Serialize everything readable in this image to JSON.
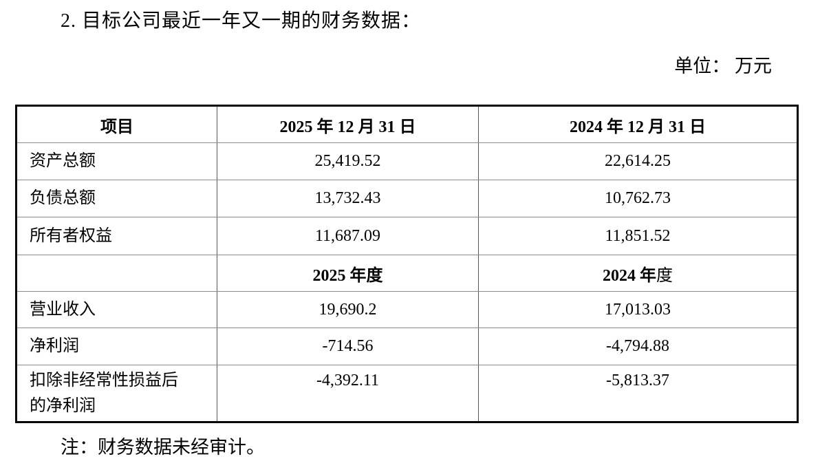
{
  "page": {
    "title": "2. 目标公司最近一年又一期的财务数据：",
    "unit_label": "单位： 万元",
    "note": "注：财务数据未经审计。"
  },
  "table": {
    "header": {
      "item": "项目",
      "col_2025": "2025 年 12 月 31 日",
      "col_2024": "2024 年 12 月 31 日"
    },
    "balance_rows": [
      {
        "label": "资产总额",
        "v2025": "25,419.52",
        "v2024": "22,614.25"
      },
      {
        "label": "负债总额",
        "v2025": "13,732.43",
        "v2024": "10,762.73"
      },
      {
        "label": "所有者权益",
        "v2025": "11,687.09",
        "v2024": "11,851.52"
      }
    ],
    "period_header": {
      "col_2025": "2025 年度",
      "col_2024_bold": "2024 年",
      "col_2024_regular": "度"
    },
    "income_rows": [
      {
        "label": "营业收入",
        "v2025": "19,690.2",
        "v2024": "17,013.03"
      },
      {
        "label": "净利润",
        "v2025": "-714.56",
        "v2024": "-4,794.88"
      },
      {
        "label": "扣除非经常性损益后的净利润",
        "v2025": "-4,392.11",
        "v2024": "-5,813.37"
      }
    ]
  }
}
